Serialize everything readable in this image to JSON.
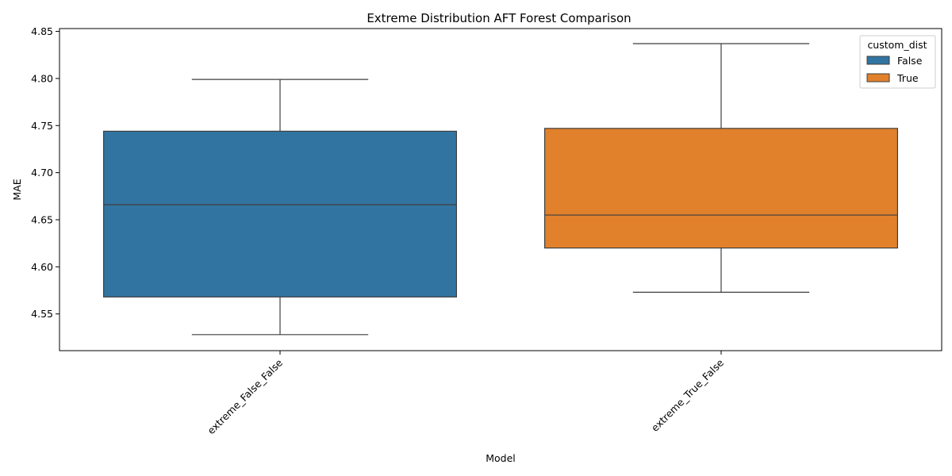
{
  "chart_data": {
    "type": "box",
    "title": "Extreme Distribution AFT Forest Comparison",
    "xlabel": "Model",
    "ylabel": "MAE",
    "categories": [
      "extreme_False_False",
      "extreme_True_False"
    ],
    "ylim": [
      4.511,
      4.853
    ],
    "y_ticks": [
      4.55,
      4.6,
      4.65,
      4.7,
      4.75,
      4.8,
      4.85
    ],
    "y_tick_labels": [
      "4.55",
      "4.60",
      "4.65",
      "4.70",
      "4.75",
      "4.80",
      "4.85"
    ],
    "x_tick_rotation_deg": 45,
    "grid": false,
    "legend": {
      "title": "custom_dist",
      "position": "top-right",
      "entries": [
        {
          "label": "False",
          "color": "#3274a1"
        },
        {
          "label": "True",
          "color": "#e1812c"
        }
      ]
    },
    "series": [
      {
        "name": "False",
        "category": "extreme_False_False",
        "color": "#3274a1",
        "whisker_low": 4.528,
        "q1": 4.568,
        "median": 4.666,
        "q3": 4.744,
        "whisker_high": 4.799
      },
      {
        "name": "True",
        "category": "extreme_True_False",
        "color": "#e1812c",
        "whisker_low": 4.573,
        "q1": 4.62,
        "median": 4.655,
        "q3": 4.747,
        "whisker_high": 4.837
      }
    ]
  }
}
